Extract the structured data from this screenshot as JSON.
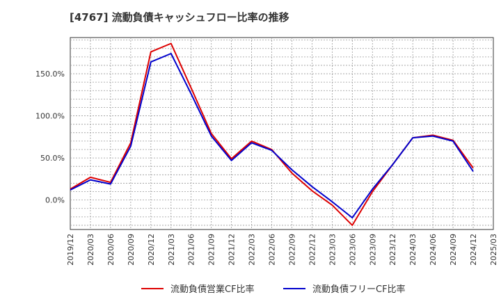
{
  "chart_data": {
    "type": "line",
    "title": "[4767]  流動負債キャッシュフロー比率の推移",
    "x": [
      "2019/12",
      "2020/03",
      "2020/06",
      "2020/09",
      "2020/12",
      "2021/03",
      "2021/06",
      "2021/09",
      "2021/12",
      "2022/03",
      "2022/06",
      "2022/09",
      "2022/12",
      "2023/03",
      "2023/06",
      "2023/09",
      "2023/12",
      "2024/03",
      "2024/06",
      "2024/09",
      "2024/12"
    ],
    "x_ticks": [
      "2019/12",
      "2020/03",
      "2020/06",
      "2020/09",
      "2020/12",
      "2021/03",
      "2021/06",
      "2021/09",
      "2021/12",
      "2022/03",
      "2022/06",
      "2022/09",
      "2022/12",
      "2023/03",
      "2023/06",
      "2023/09",
      "2023/12",
      "2024/03",
      "2024/06",
      "2024/09",
      "2024/12",
      "2025/03"
    ],
    "y_ticks": [
      "0.0%",
      "50.0%",
      "100.0%",
      "150.0%"
    ],
    "y_tick_values": [
      0,
      50,
      100,
      150
    ],
    "ylim": [
      -35,
      193
    ],
    "grid": true,
    "legend_position": "bottom",
    "series": [
      {
        "name": "流動負債営業CF比率",
        "color": "#dd0000",
        "values": [
          13,
          27,
          21,
          68,
          176,
          186,
          133,
          79,
          49,
          70,
          60,
          32,
          11,
          -6,
          -30,
          10,
          42,
          74,
          77,
          71,
          38
        ]
      },
      {
        "name": "流動負債フリーCF比率",
        "color": "#0000cc",
        "values": [
          12,
          24,
          19,
          64,
          164,
          174,
          126,
          76,
          47,
          68,
          59,
          36,
          16,
          -2,
          -21,
          13,
          42,
          74,
          76,
          70,
          34
        ]
      }
    ]
  }
}
